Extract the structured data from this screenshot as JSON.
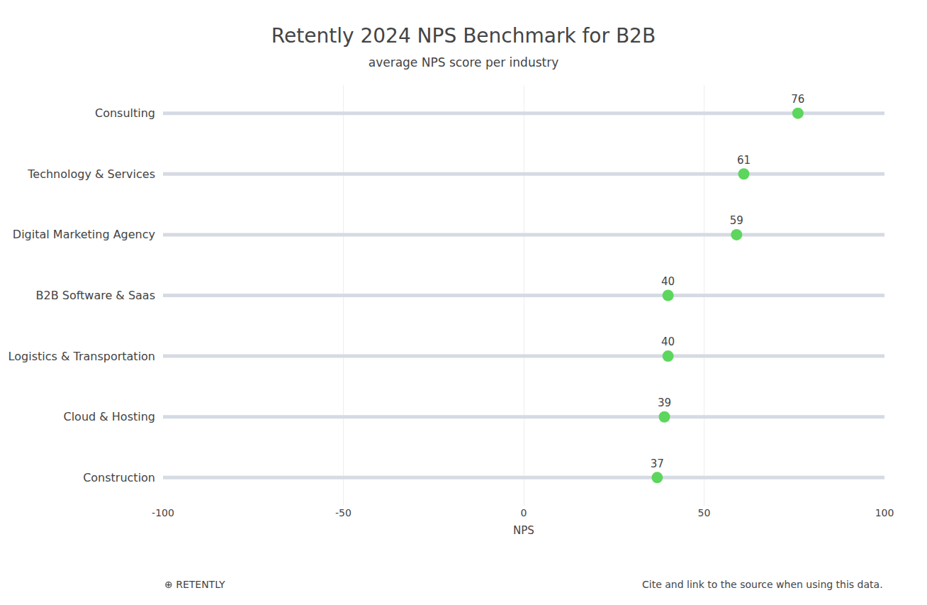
{
  "chart_data": {
    "type": "lollipop",
    "title": "Retently 2024 NPS Benchmark for B2B",
    "subtitle": "average NPS score per industry",
    "categories": [
      "Consulting",
      "Technology & Services",
      "Digital Marketing Agency",
      "B2B Software & Saas",
      "Logistics & Transportation",
      "Cloud & Hosting",
      "Construction"
    ],
    "values": [
      76,
      61,
      59,
      40,
      40,
      39,
      37
    ],
    "orientation": "horizontal",
    "color": "#5cd65c",
    "xlim": [
      -100,
      100
    ],
    "xticks": [
      -100,
      -50,
      0,
      50,
      100
    ],
    "xlabel": "NPS",
    "grid": true,
    "data_labels": true,
    "annotations": [
      "⊕ RETENTLY",
      "Cite and link to the source when using this data."
    ]
  }
}
